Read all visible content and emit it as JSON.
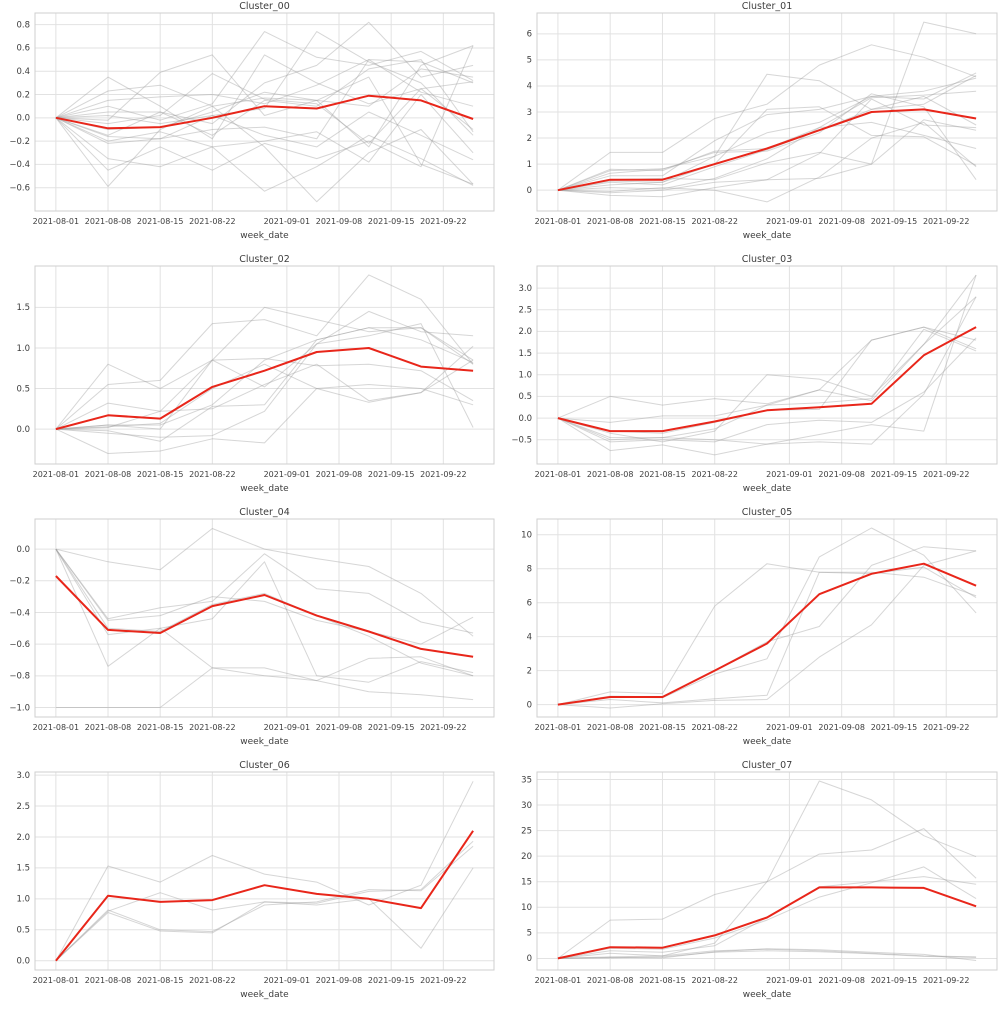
{
  "figure": {
    "background": "#ffffff",
    "grid_color": "#e2e2e2",
    "spine_color": "#cfcfcf",
    "member_line_color": "#9e9e9e",
    "member_line_opacity": 0.42,
    "mean_line_color": "#e8261a",
    "text_color": "#3d3d3d",
    "xlabel": "week_date",
    "x_point_dates": [
      "2021-08-01",
      "2021-08-08",
      "2021-08-15",
      "2021-08-22",
      "2021-08-29",
      "2021-09-05",
      "2021-09-12",
      "2021-09-19",
      "2021-09-26"
    ],
    "x_point_days": [
      0,
      7,
      14,
      21,
      28,
      35,
      42,
      49,
      56
    ],
    "x_tick_days": [
      0,
      7,
      14,
      21,
      31,
      38,
      45,
      52
    ],
    "x_tick_labels": [
      "2021-08-01",
      "2021-08-08",
      "2021-08-15",
      "2021-08-22",
      "2021-09-01",
      "2021-09-08",
      "2021-09-15",
      "2021-09-22"
    ],
    "x_domain_days": [
      -2.8,
      58.8
    ]
  },
  "chart_data": [
    {
      "type": "line",
      "title": "Cluster_00",
      "xlabel": "week_date",
      "ylim": [
        -0.8,
        0.9
      ],
      "y_ticks": [
        -0.6,
        -0.4,
        -0.2,
        0.0,
        0.2,
        0.4,
        0.6,
        0.8
      ],
      "y_tick_labels": [
        "−0.6",
        "−0.4",
        "−0.2",
        "0.0",
        "0.2",
        "0.4",
        "0.6",
        "0.8"
      ],
      "mean_values": [
        0.0,
        -0.09,
        -0.08,
        0.0,
        0.1,
        0.08,
        0.19,
        0.15,
        -0.01
      ],
      "member_series": [
        [
          0,
          -0.59,
          -0.1,
          0.1,
          -0.25,
          -0.72,
          -0.3,
          -0.1,
          -0.57
        ],
        [
          0,
          -0.45,
          -0.25,
          -0.45,
          -0.22,
          -0.35,
          -0.2,
          -0.42,
          0.62
        ],
        [
          0,
          -0.35,
          -0.42,
          -0.25,
          -0.63,
          -0.42,
          -0.15,
          -0.35,
          -0.58
        ],
        [
          0,
          -0.22,
          -0.18,
          0.02,
          -0.15,
          -0.25,
          0.05,
          -0.15,
          -0.36
        ],
        [
          0,
          -0.2,
          -0.12,
          -0.25,
          -0.2,
          -0.12,
          -0.38,
          0.2,
          -0.3
        ],
        [
          0,
          -0.16,
          -0.18,
          -0.1,
          -0.08,
          -0.18,
          0.5,
          0.48,
          0.3
        ],
        [
          0,
          -0.15,
          0.05,
          -0.15,
          0.15,
          0.1,
          0.42,
          0.5,
          -0.12
        ],
        [
          0,
          -0.1,
          -0.08,
          0.05,
          0.22,
          0.15,
          0.1,
          0.42,
          0.35
        ],
        [
          0,
          -0.05,
          0.02,
          0.38,
          0.16,
          0.12,
          -0.22,
          0.25,
          0.31
        ],
        [
          0,
          0.02,
          -0.05,
          0.02,
          0.08,
          0.74,
          0.48,
          0.3,
          -0.15
        ],
        [
          0,
          0.05,
          0.05,
          -0.05,
          0.3,
          0.45,
          0.82,
          0.35,
          0.45
        ],
        [
          0,
          0.1,
          -0.02,
          0.12,
          0.74,
          0.52,
          0.45,
          0.57,
          0.32
        ],
        [
          0,
          0.15,
          0.18,
          0.2,
          0.12,
          0.28,
          0.5,
          0.22,
          0.1
        ],
        [
          0,
          0.23,
          0.28,
          0.1,
          0.17,
          0.15,
          -0.25,
          0.45,
          0.62
        ],
        [
          0,
          0.35,
          0.1,
          -0.18,
          0.54,
          0.3,
          0.12,
          0.25,
          -0.1
        ],
        [
          0,
          -0.02,
          0.39,
          0.54,
          0.02,
          0.15,
          0.35,
          -0.4,
          -0.57
        ]
      ]
    },
    {
      "type": "line",
      "title": "Cluster_01",
      "xlabel": "week_date",
      "ylim": [
        -0.8,
        6.8
      ],
      "y_ticks": [
        0,
        1,
        2,
        3,
        4,
        5,
        6
      ],
      "y_tick_labels": [
        "0",
        "1",
        "2",
        "3",
        "4",
        "5",
        "6"
      ],
      "mean_values": [
        0.0,
        0.4,
        0.4,
        1.0,
        1.6,
        2.3,
        3.0,
        3.1,
        2.75
      ],
      "member_series": [
        [
          0,
          0.75,
          0.82,
          1.3,
          2.2,
          2.6,
          3.6,
          3.5,
          4.5
        ],
        [
          0,
          1.45,
          1.45,
          2.75,
          3.3,
          4.8,
          5.58,
          5.1,
          4.35
        ],
        [
          0,
          0.4,
          0.45,
          0.4,
          1.05,
          1.45,
          1.0,
          6.45,
          6.0
        ],
        [
          0,
          0.8,
          0.75,
          1.5,
          1.6,
          2.4,
          3.55,
          3.65,
          3.8
        ],
        [
          0,
          0.3,
          0.2,
          0.9,
          1.55,
          2.3,
          3.1,
          3.6,
          2.5
        ],
        [
          0,
          -0.2,
          -0.25,
          0.1,
          0.4,
          1.4,
          3.5,
          2.5,
          2.4
        ],
        [
          0,
          0.1,
          0.05,
          0.45,
          1.2,
          2.4,
          2.6,
          2.1,
          1.6
        ],
        [
          0,
          0.35,
          0.3,
          1.0,
          3.1,
          3.2,
          2.1,
          2.05,
          0.95
        ],
        [
          0,
          0.55,
          0.55,
          1.9,
          2.9,
          3.1,
          3.6,
          3.8,
          4.3
        ],
        [
          0,
          -0.1,
          0.0,
          0.3,
          0.4,
          0.45,
          1.0,
          2.7,
          2.3
        ],
        [
          0,
          0.2,
          0.3,
          1.3,
          4.45,
          4.2,
          3.1,
          3.3,
          4.4
        ],
        [
          0,
          0.65,
          0.8,
          1.45,
          1.5,
          2.2,
          3.7,
          3.2,
          0.4
        ],
        [
          0,
          -0.05,
          0.1,
          0.0,
          -0.45,
          0.5,
          2.0,
          2.6,
          0.9
        ]
      ]
    },
    {
      "type": "line",
      "title": "Cluster_02",
      "xlabel": "week_date",
      "ylim": [
        -0.43,
        2.01
      ],
      "y_ticks": [
        0.0,
        0.5,
        1.0,
        1.5
      ],
      "y_tick_labels": [
        "0.0",
        "0.5",
        "1.0",
        "1.5"
      ],
      "mean_values": [
        0.0,
        0.17,
        0.13,
        0.52,
        0.72,
        0.95,
        1.0,
        0.77,
        0.72
      ],
      "member_series": [
        [
          0,
          0.8,
          0.5,
          0.85,
          1.5,
          1.35,
          1.2,
          1.25,
          0.85
        ],
        [
          0,
          0.55,
          0.6,
          1.3,
          1.35,
          1.15,
          1.9,
          1.6,
          0.8
        ],
        [
          0,
          0.32,
          0.22,
          0.85,
          0.52,
          1.05,
          1.45,
          1.2,
          1.15
        ],
        [
          0,
          0.05,
          0.05,
          0.3,
          0.85,
          1.1,
          1.25,
          1.25,
          0.8
        ],
        [
          0,
          0.02,
          0.22,
          0.25,
          0.55,
          0.8,
          0.35,
          0.45,
          1.02
        ],
        [
          0,
          -0.05,
          -0.1,
          -0.08,
          0.22,
          1.05,
          1.15,
          1.3,
          0.02
        ],
        [
          0,
          -0.3,
          -0.27,
          -0.12,
          -0.17,
          0.5,
          0.55,
          0.5,
          0.3
        ],
        [
          0,
          0.03,
          0.07,
          0.5,
          0.8,
          0.5,
          0.33,
          0.45,
          0.85
        ],
        [
          0,
          -0.02,
          -0.15,
          0.28,
          0.3,
          1.1,
          1.25,
          1.1,
          0.82
        ],
        [
          0,
          0.05,
          0.0,
          0.85,
          0.87,
          0.78,
          0.8,
          0.72,
          0.35
        ]
      ]
    },
    {
      "type": "line",
      "title": "Cluster_03",
      "xlabel": "week_date",
      "ylim": [
        -1.06,
        3.51
      ],
      "y_ticks": [
        -0.5,
        0.0,
        0.5,
        1.0,
        1.5,
        2.0,
        2.5,
        3.0
      ],
      "y_tick_labels": [
        "−0.5",
        "0.0",
        "0.5",
        "1.0",
        "1.5",
        "2.0",
        "2.5",
        "3.0"
      ],
      "mean_values": [
        0.0,
        -0.3,
        -0.3,
        -0.08,
        0.18,
        0.25,
        0.33,
        1.45,
        2.1
      ],
      "member_series": [
        [
          0,
          0.5,
          0.3,
          0.45,
          0.33,
          0.65,
          1.8,
          2.1,
          1.8
        ],
        [
          0,
          -0.1,
          0.05,
          0.05,
          0.3,
          0.35,
          0.45,
          2.05,
          1.55
        ],
        [
          0,
          -0.45,
          -0.45,
          -0.25,
          0.3,
          0.65,
          0.4,
          1.7,
          3.3
        ],
        [
          0,
          -0.35,
          -0.55,
          -0.3,
          1.0,
          0.9,
          0.5,
          1.7,
          2.8
        ],
        [
          0,
          -0.55,
          -0.5,
          -0.55,
          -0.15,
          -0.05,
          -0.1,
          0.6,
          1.85
        ],
        [
          0,
          -0.75,
          -0.62,
          -0.85,
          -0.6,
          -0.38,
          -0.15,
          -0.3,
          3.3
        ],
        [
          0,
          -0.5,
          -0.45,
          -0.5,
          -0.6,
          -0.55,
          -0.6,
          0.55,
          2.8
        ],
        [
          0,
          -0.3,
          -0.35,
          -0.1,
          0.18,
          0.2,
          1.8,
          2.1,
          1.6
        ]
      ]
    },
    {
      "type": "line",
      "title": "Cluster_04",
      "xlabel": "week_date",
      "ylim": [
        -1.06,
        0.19
      ],
      "y_ticks": [
        -1.0,
        -0.8,
        -0.6,
        -0.4,
        -0.2,
        0.0
      ],
      "y_tick_labels": [
        "−1.0",
        "−0.8",
        "−0.6",
        "−0.4",
        "−0.2",
        "0.0"
      ],
      "mean_values": [
        -0.17,
        -0.51,
        -0.53,
        -0.36,
        -0.29,
        -0.42,
        -0.52,
        -0.63,
        -0.68
      ],
      "member_series": [
        [
          0,
          -0.08,
          -0.13,
          0.13,
          0.0,
          -0.06,
          -0.11,
          -0.28,
          -0.55
        ],
        [
          0,
          -0.44,
          -0.37,
          -0.33,
          -0.03,
          -0.25,
          -0.28,
          -0.46,
          -0.53
        ],
        [
          0,
          -0.54,
          -0.5,
          -0.44,
          -0.08,
          -0.8,
          -0.84,
          -0.71,
          -0.78
        ],
        [
          0,
          -0.74,
          -0.5,
          -0.75,
          -0.75,
          -0.83,
          -0.69,
          -0.68,
          -0.8
        ],
        [
          -1.0,
          -1.0,
          -1.0,
          -0.75,
          -0.8,
          -0.83,
          -0.9,
          -0.92,
          -0.95
        ],
        [
          0,
          -0.5,
          -0.52,
          -0.35,
          -0.28,
          -0.42,
          -0.55,
          -0.72,
          -0.8
        ],
        [
          0,
          -0.45,
          -0.42,
          -0.3,
          -0.33,
          -0.45,
          -0.52,
          -0.6,
          -0.43
        ]
      ]
    },
    {
      "type": "line",
      "title": "Cluster_05",
      "xlabel": "week_date",
      "ylim": [
        -0.73,
        10.93
      ],
      "y_ticks": [
        0,
        2,
        4,
        6,
        8,
        10
      ],
      "y_tick_labels": [
        "0",
        "2",
        "4",
        "6",
        "8",
        "10"
      ],
      "mean_values": [
        0.0,
        0.45,
        0.45,
        2.0,
        3.6,
        6.5,
        7.7,
        8.3,
        7.0
      ],
      "member_series": [
        [
          0,
          0.75,
          0.65,
          5.8,
          8.3,
          7.8,
          7.7,
          8.1,
          6.3
        ],
        [
          0,
          0.45,
          0.4,
          1.8,
          2.7,
          8.7,
          10.4,
          8.8,
          5.4
        ],
        [
          0,
          0.3,
          0.1,
          0.35,
          0.55,
          7.8,
          7.8,
          7.5,
          6.4
        ],
        [
          0,
          -0.2,
          0.05,
          0.25,
          0.3,
          2.8,
          4.7,
          8.2,
          9.05
        ],
        [
          0,
          0.5,
          0.45,
          2.0,
          3.7,
          4.6,
          8.2,
          9.3,
          9.05
        ]
      ]
    },
    {
      "type": "line",
      "title": "Cluster_06",
      "xlabel": "week_date",
      "ylim": [
        -0.15,
        3.05
      ],
      "y_ticks": [
        0.0,
        0.5,
        1.0,
        1.5,
        2.0,
        2.5,
        3.0
      ],
      "y_tick_labels": [
        "0.0",
        "0.5",
        "1.0",
        "1.5",
        "2.0",
        "2.5",
        "3.0"
      ],
      "mean_values": [
        0.0,
        1.05,
        0.95,
        0.98,
        1.22,
        1.08,
        1.0,
        0.85,
        2.1
      ],
      "member_series": [
        [
          0,
          0.8,
          1.1,
          0.82,
          0.95,
          0.93,
          1.12,
          1.15,
          1.93
        ],
        [
          0,
          1.53,
          1.27,
          1.7,
          1.4,
          1.27,
          0.9,
          1.22,
          2.9
        ],
        [
          0,
          0.78,
          0.48,
          0.45,
          0.95,
          0.9,
          1.0,
          0.2,
          1.5
        ],
        [
          0,
          0.82,
          0.5,
          0.47,
          0.9,
          0.95,
          1.15,
          1.13,
          1.85
        ]
      ]
    },
    {
      "type": "line",
      "title": "Cluster_07",
      "xlabel": "week_date",
      "ylim": [
        -2.26,
        36.46
      ],
      "y_ticks": [
        0,
        5,
        10,
        15,
        20,
        25,
        30,
        35
      ],
      "y_tick_labels": [
        "0",
        "5",
        "10",
        "15",
        "20",
        "25",
        "30",
        "35"
      ],
      "mean_values": [
        0.0,
        2.2,
        2.1,
        4.5,
        8.0,
        13.9,
        13.9,
        13.8,
        10.2
      ],
      "member_series": [
        [
          0,
          0.3,
          0.5,
          3.0,
          15.0,
          34.7,
          31.0,
          24.0,
          19.9
        ],
        [
          0,
          7.5,
          7.7,
          12.5,
          15.0,
          20.4,
          21.2,
          25.4,
          15.7
        ],
        [
          0,
          1.5,
          1.2,
          2.5,
          8.0,
          14.0,
          15.0,
          16.0,
          14.5
        ],
        [
          0,
          2.0,
          1.8,
          4.0,
          7.5,
          12.0,
          14.8,
          17.9,
          11.7
        ],
        [
          0,
          1.0,
          0.5,
          1.5,
          1.8,
          1.5,
          1.0,
          0.5,
          0.3
        ],
        [
          0,
          0.2,
          0.1,
          1.3,
          1.9,
          1.7,
          1.2,
          0.8,
          -0.4
        ],
        [
          0,
          0.1,
          0.3,
          1.2,
          1.5,
          1.3,
          0.9,
          0.4,
          0.2
        ]
      ]
    }
  ]
}
